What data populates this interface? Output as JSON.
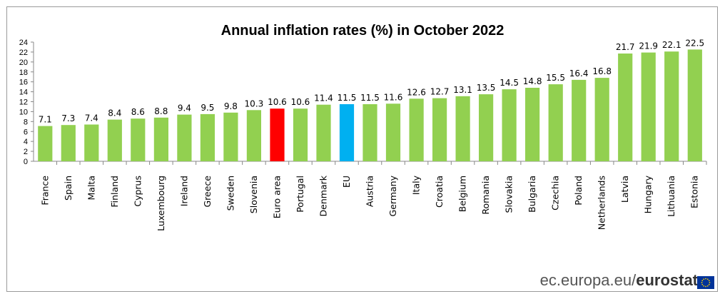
{
  "chart_data": {
    "type": "bar",
    "title": "Annual inflation rates (%) in October 2022",
    "xlabel": "",
    "ylabel": "",
    "ylim": [
      0,
      24
    ],
    "yticks": [
      0,
      2,
      4,
      6,
      8,
      10,
      12,
      14,
      16,
      18,
      20,
      22,
      24
    ],
    "grid": false,
    "categories": [
      "France",
      "Spain",
      "Malta",
      "Finland",
      "Cyprus",
      "Luxembourg",
      "Ireland",
      "Greece",
      "Sweden",
      "Slovenia",
      "Euro area",
      "Portugal",
      "Denmark",
      "EU",
      "Austria",
      "Germany",
      "Italy",
      "Croatia",
      "Belgium",
      "Romania",
      "Slovakia",
      "Bulgaria",
      "Czechia",
      "Poland",
      "Netherlands",
      "Latvia",
      "Hungary",
      "Lithuania",
      "Estonia"
    ],
    "values": [
      7.1,
      7.3,
      7.4,
      8.4,
      8.6,
      8.8,
      9.4,
      9.5,
      9.8,
      10.3,
      10.6,
      10.6,
      11.4,
      11.5,
      11.5,
      11.6,
      12.6,
      12.7,
      13.1,
      13.5,
      14.5,
      14.8,
      15.5,
      16.4,
      16.8,
      21.7,
      21.9,
      22.1,
      22.5
    ],
    "colors": {
      "default": "#92d050",
      "Euro area": "#ff0000",
      "EU": "#00b0f0"
    }
  },
  "footer": {
    "source_light": "ec.europa.eu/",
    "source_bold": "eurostat"
  },
  "flag_colors": {
    "blue": "#003399",
    "stars": "#ffcc00"
  }
}
